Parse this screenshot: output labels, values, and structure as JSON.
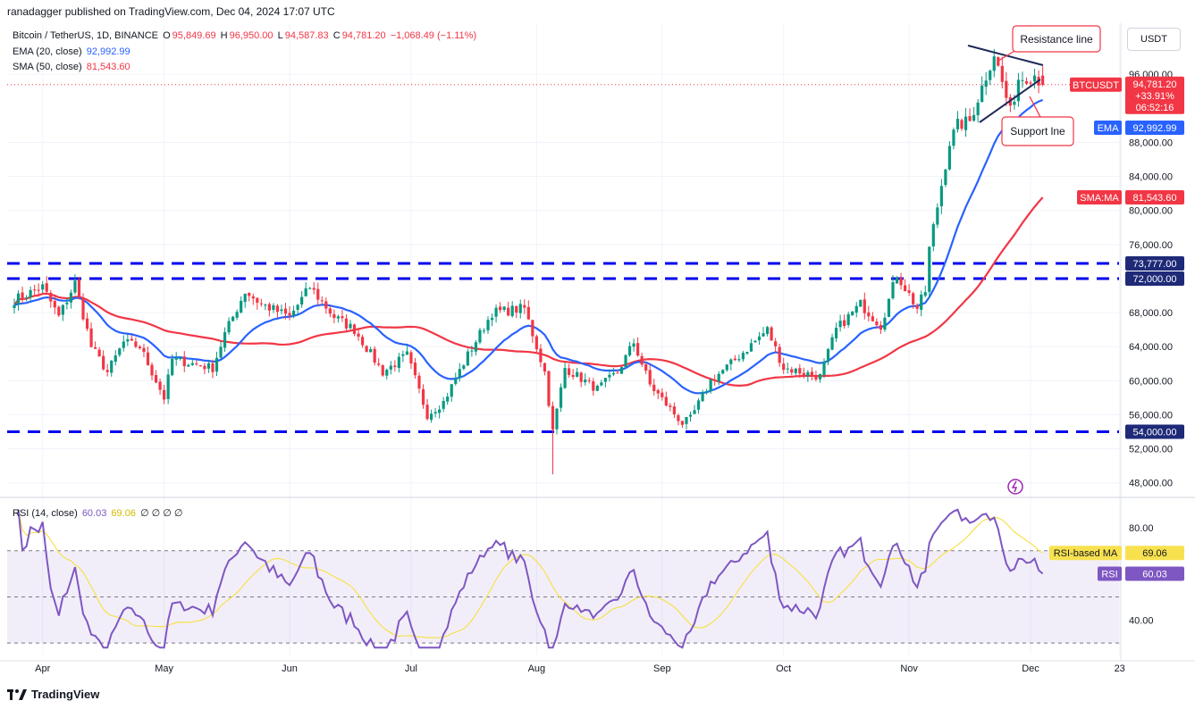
{
  "header": {
    "publisher_line": "ranadagger published on TradingView.com, Dec 04, 2024 17:07 UTC"
  },
  "legend": {
    "symbol": "Bitcoin / TetherUS, 1D, BINANCE",
    "ohlc": {
      "o_label": "O",
      "o": "95,849.69",
      "h_label": "H",
      "h": "96,950.00",
      "l_label": "L",
      "l": "94,587.83",
      "c_label": "C",
      "c": "94,781.20",
      "change": "−1,068.49 (−1.11%)"
    },
    "ema_label": "EMA (20, close)",
    "ema_value": "92,992.99",
    "sma_label": "SMA (50, close)",
    "sma_value": "81,543.60",
    "rsi_label": "RSI (14, close)",
    "rsi_value": "60.03",
    "rsi_ma_value": "69.06",
    "rsi_extra": "∅ ∅ ∅ ∅"
  },
  "currency_button": "USDT",
  "annotations": {
    "resistance": "Resistance line",
    "support": "Support lne"
  },
  "price_tags": {
    "btc_name": "BTCUSDT",
    "btc_price": "94,781.20",
    "btc_change": "+33.91%",
    "btc_countdown": "06:52:16",
    "ema_name": "EMA",
    "ema_price": "92,992.99",
    "sma_name": "SMA:MA",
    "sma_price": "81,543.60",
    "level_73777": "73,777.00",
    "level_72000": "72,000.00",
    "level_54000": "54,000.00",
    "rsi_ma_name": "RSI-based MA",
    "rsi_ma_price": "69.06",
    "rsi_name": "RSI",
    "rsi_price": "60.03"
  },
  "footer": {
    "brand": "TradingView"
  },
  "colors": {
    "up": "#089981",
    "down": "#f23645",
    "ema": "#2962ff",
    "sma": "#f23645",
    "rsi": "#7e57c2",
    "rsi_ma": "#f7e14f",
    "levels": "#0000ee"
  },
  "chart_data": [
    {
      "type": "candlestick",
      "title": "Bitcoin / TetherUS, 1D, BINANCE",
      "x_tick_labels": [
        "Apr",
        "May",
        "Jun",
        "Jul",
        "Aug",
        "Sep",
        "Oct",
        "Nov",
        "Dec",
        "23"
      ],
      "y_tick_labels": [
        "48,000.00",
        "52,000.00",
        "56,000.00",
        "60,000.00",
        "64,000.00",
        "68,000.00",
        "76,000.00",
        "80,000.00",
        "84,000.00",
        "88,000.00",
        "96,000.00"
      ],
      "ylim": [
        46500,
        102000
      ],
      "horizontal_levels": [
        73777,
        72000,
        54000
      ],
      "last": {
        "date": "2024-12-04",
        "open": 95849.69,
        "high": 96950.0,
        "low": 94587.83,
        "close": 94781.2
      },
      "anchors": [
        [
          "2024-03-25",
          69500
        ],
        [
          "2024-04-01",
          71000
        ],
        [
          "2024-04-05",
          67500
        ],
        [
          "2024-04-09",
          71500
        ],
        [
          "2024-04-13",
          64000
        ],
        [
          "2024-04-17",
          61000
        ],
        [
          "2024-04-21",
          64500
        ],
        [
          "2024-04-25",
          64000
        ],
        [
          "2024-05-01",
          58000
        ],
        [
          "2024-05-03",
          62500
        ],
        [
          "2024-05-08",
          62000
        ],
        [
          "2024-05-13",
          61500
        ],
        [
          "2024-05-16",
          65500
        ],
        [
          "2024-05-21",
          70500
        ],
        [
          "2024-05-25",
          69000
        ],
        [
          "2024-06-01",
          67500
        ],
        [
          "2024-06-06",
          71000
        ],
        [
          "2024-06-12",
          67500
        ],
        [
          "2024-06-17",
          66000
        ],
        [
          "2024-06-24",
          61000
        ],
        [
          "2024-06-30",
          63000
        ],
        [
          "2024-07-05",
          56000
        ],
        [
          "2024-07-09",
          57500
        ],
        [
          "2024-07-15",
          63000
        ],
        [
          "2024-07-21",
          68000
        ],
        [
          "2024-07-29",
          68500
        ],
        [
          "2024-08-03",
          61000
        ],
        [
          "2024-08-05",
          54000
        ],
        [
          "2024-08-08",
          61500
        ],
        [
          "2024-08-16",
          59000
        ],
        [
          "2024-08-21",
          61000
        ],
        [
          "2024-08-25",
          64500
        ],
        [
          "2024-08-29",
          59500
        ],
        [
          "2024-09-06",
          55000
        ],
        [
          "2024-09-08",
          55500
        ],
        [
          "2024-09-13",
          60000
        ],
        [
          "2024-09-18",
          62000
        ],
        [
          "2024-09-27",
          66000
        ],
        [
          "2024-10-01",
          61500
        ],
        [
          "2024-10-10",
          60500
        ],
        [
          "2024-10-14",
          66000
        ],
        [
          "2024-10-20",
          69000
        ],
        [
          "2024-10-25",
          66500
        ],
        [
          "2024-10-29",
          72500
        ],
        [
          "2024-11-03",
          68500
        ],
        [
          "2024-11-05",
          70500
        ],
        [
          "2024-11-06",
          75500
        ],
        [
          "2024-11-11",
          88000
        ],
        [
          "2024-11-13",
          90000
        ],
        [
          "2024-11-16",
          90500
        ],
        [
          "2024-11-22",
          98500
        ],
        [
          "2024-11-26",
          91500
        ],
        [
          "2024-11-28",
          95500
        ],
        [
          "2024-12-02",
          96000
        ],
        [
          "2024-12-04",
          94781
        ]
      ]
    },
    {
      "type": "line",
      "title": "RSI (14, close)",
      "series": [
        {
          "name": "RSI",
          "last": 60.03
        },
        {
          "name": "RSI-based MA",
          "last": 69.06
        }
      ],
      "y_tick_labels": [
        "40.00",
        "80.00"
      ],
      "guide_levels": [
        70,
        50,
        30
      ],
      "ylim": [
        25,
        92
      ]
    }
  ]
}
